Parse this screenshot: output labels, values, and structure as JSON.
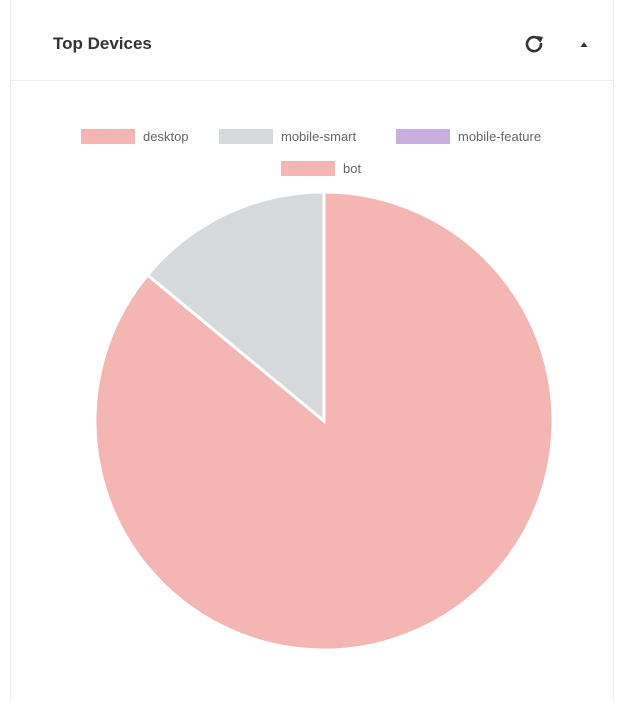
{
  "card": {
    "title": "Top Devices",
    "refresh_icon": "refresh-icon",
    "collapse_icon": "caret-up-icon"
  },
  "chart_data": {
    "type": "pie",
    "title": "",
    "legend_position": "top",
    "labels": [
      "desktop",
      "mobile-smart",
      "mobile-feature",
      "bot"
    ],
    "values": [
      86,
      14,
      0,
      0
    ],
    "colors": [
      "#f4b6b2",
      "#d5d9d9",
      "#c9aee0",
      "#f4b6b2"
    ]
  }
}
